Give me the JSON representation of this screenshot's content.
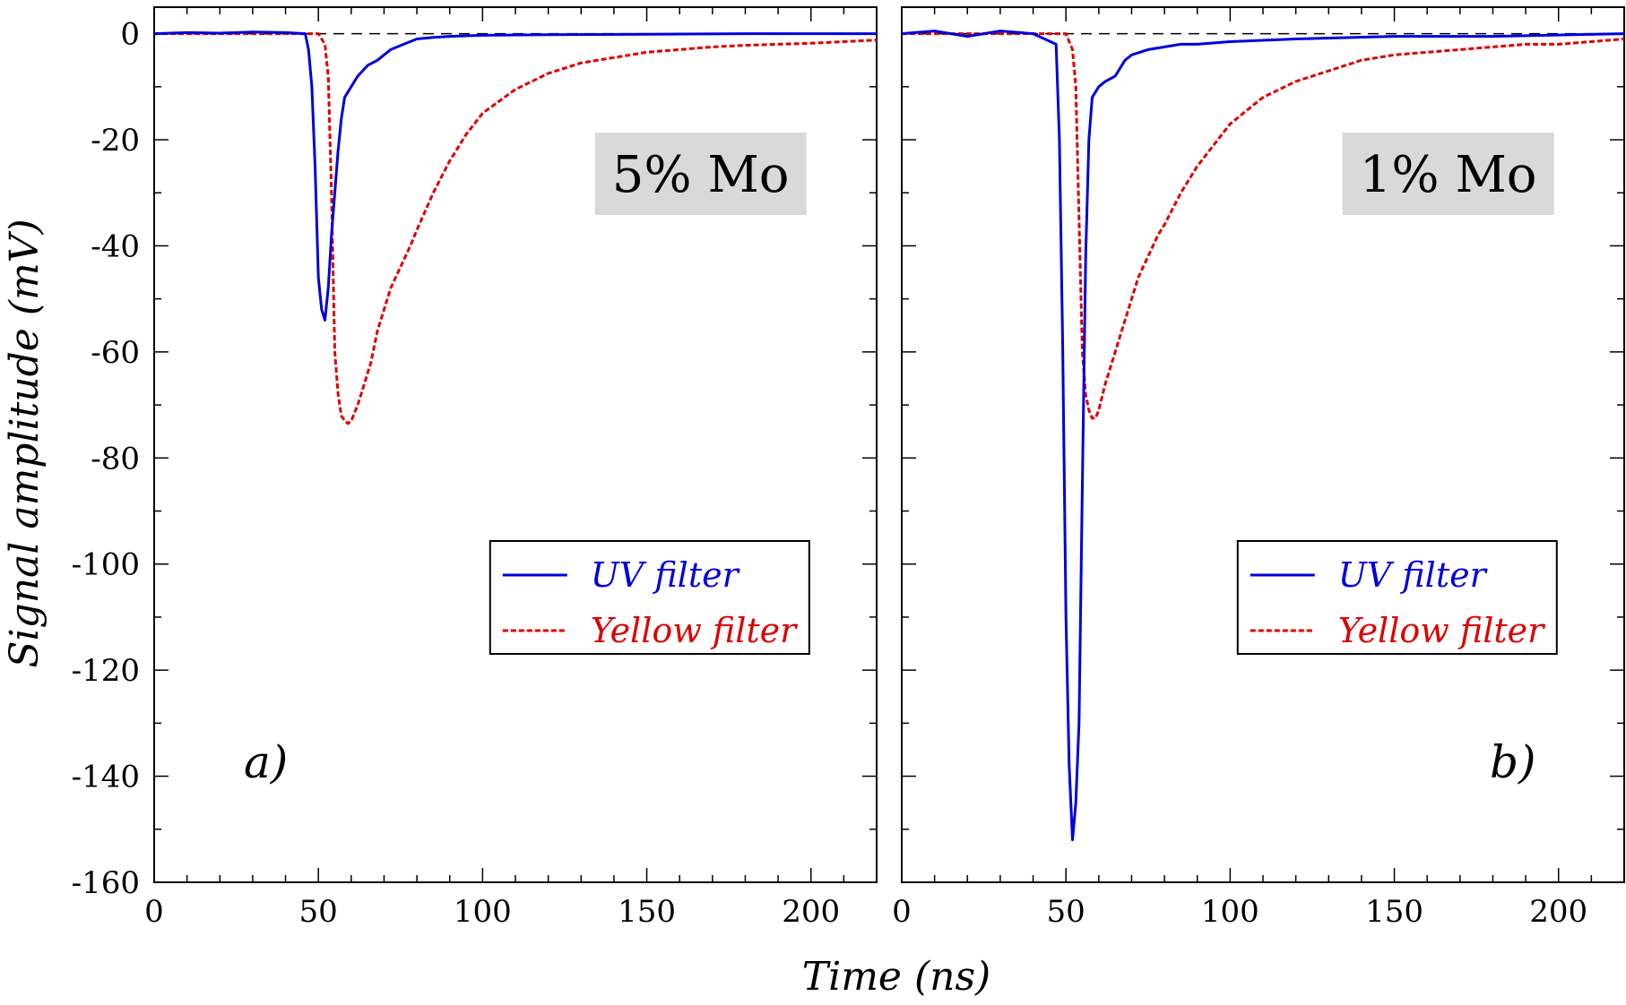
{
  "chart_data": {
    "type": "line",
    "xlabel": "Time (ns)",
    "ylabel": "Signal amplitude (mV)",
    "xlim": [
      0,
      220
    ],
    "ylim": [
      -160,
      5
    ],
    "xticks": [
      0,
      50,
      100,
      150,
      200
    ],
    "yticks": [
      0,
      -20,
      -40,
      -60,
      -80,
      -100,
      -120,
      -140,
      -160
    ],
    "grid": false,
    "reference_line": {
      "y": 0,
      "style": "dashed",
      "color": "#000000"
    },
    "legend_placement": "lower-right",
    "series_styles": [
      {
        "name": "UV filter",
        "color": "#0000dd",
        "dash": "solid"
      },
      {
        "name": "Yellow filter",
        "color": "#dd0000",
        "dash": "dashed"
      }
    ],
    "panels": [
      {
        "panel_label": "a)",
        "box_label": "5% Mo",
        "series": [
          {
            "name": "UV filter",
            "x": [
              0,
              10,
              20,
              30,
              40,
              46,
              47,
              48,
              49,
              50,
              51,
              52,
              53,
              54,
              55,
              56,
              57,
              58,
              60,
              62,
              65,
              68,
              72,
              76,
              80,
              85,
              90,
              100,
              120,
              150,
              180,
              220
            ],
            "y": [
              0,
              0.2,
              0.1,
              0.3,
              0.2,
              0,
              -3,
              -10,
              -25,
              -46,
              -52,
              -54,
              -48,
              -38,
              -30,
              -22,
              -16,
              -12,
              -10,
              -8,
              -6,
              -5,
              -3,
              -2,
              -1,
              -0.7,
              -0.5,
              -0.3,
              -0.2,
              -0.1,
              0,
              0
            ]
          },
          {
            "name": "Yellow filter",
            "x": [
              0,
              20,
              40,
              50,
              52,
              53,
              54,
              55,
              56,
              57,
              58,
              59,
              60,
              62,
              64,
              66,
              68,
              70,
              72,
              75,
              78,
              80,
              85,
              90,
              95,
              100,
              110,
              120,
              130,
              140,
              150,
              160,
              170,
              180,
              190,
              200,
              210,
              220
            ],
            "y": [
              0,
              0,
              0,
              0,
              -2,
              -8,
              -30,
              -60,
              -68,
              -72,
              -73,
              -73.5,
              -73,
              -70,
              -66,
              -62,
              -56,
              -52,
              -48,
              -44,
              -40,
              -37,
              -30,
              -24,
              -19,
              -15,
              -10.5,
              -7.5,
              -5.5,
              -4.5,
              -3.5,
              -3,
              -2.5,
              -2.2,
              -2,
              -1.8,
              -1.5,
              -1.2
            ]
          }
        ]
      },
      {
        "panel_label": "b)",
        "box_label": "1% Mo",
        "series": [
          {
            "name": "UV filter",
            "x": [
              0,
              10,
              20,
              30,
              40,
              47,
              48,
              49,
              50,
              51,
              52,
              53,
              54,
              55,
              56,
              57,
              58,
              60,
              62,
              65,
              68,
              70,
              75,
              80,
              85,
              90,
              100,
              120,
              150,
              180,
              220
            ],
            "y": [
              0,
              0.5,
              -0.5,
              0.5,
              0,
              -2,
              -20,
              -58,
              -110,
              -138,
              -152,
              -145,
              -130,
              -85,
              -42,
              -20,
              -12,
              -10,
              -9,
              -8,
              -5,
              -4,
              -3,
              -2.5,
              -2,
              -2,
              -1.5,
              -1,
              -0.5,
              -0.5,
              0
            ]
          },
          {
            "name": "Yellow filter",
            "x": [
              0,
              20,
              40,
              50,
              52,
              53,
              54,
              55,
              56,
              57,
              58,
              59,
              60,
              62,
              64,
              66,
              68,
              70,
              72,
              75,
              78,
              80,
              85,
              90,
              95,
              100,
              110,
              120,
              130,
              140,
              150,
              160,
              170,
              180,
              190,
              200,
              210,
              220
            ],
            "y": [
              0,
              0,
              0,
              0,
              -3,
              -10,
              -35,
              -60,
              -68,
              -71,
              -72.5,
              -72.5,
              -71,
              -66,
              -62,
              -58,
              -54,
              -50,
              -46,
              -42,
              -38,
              -36,
              -30,
              -25,
              -21,
              -17,
              -12,
              -9,
              -7,
              -5,
              -4,
              -3.5,
              -3,
              -2.5,
              -2,
              -2,
              -1.5,
              -1
            ]
          }
        ]
      }
    ]
  }
}
